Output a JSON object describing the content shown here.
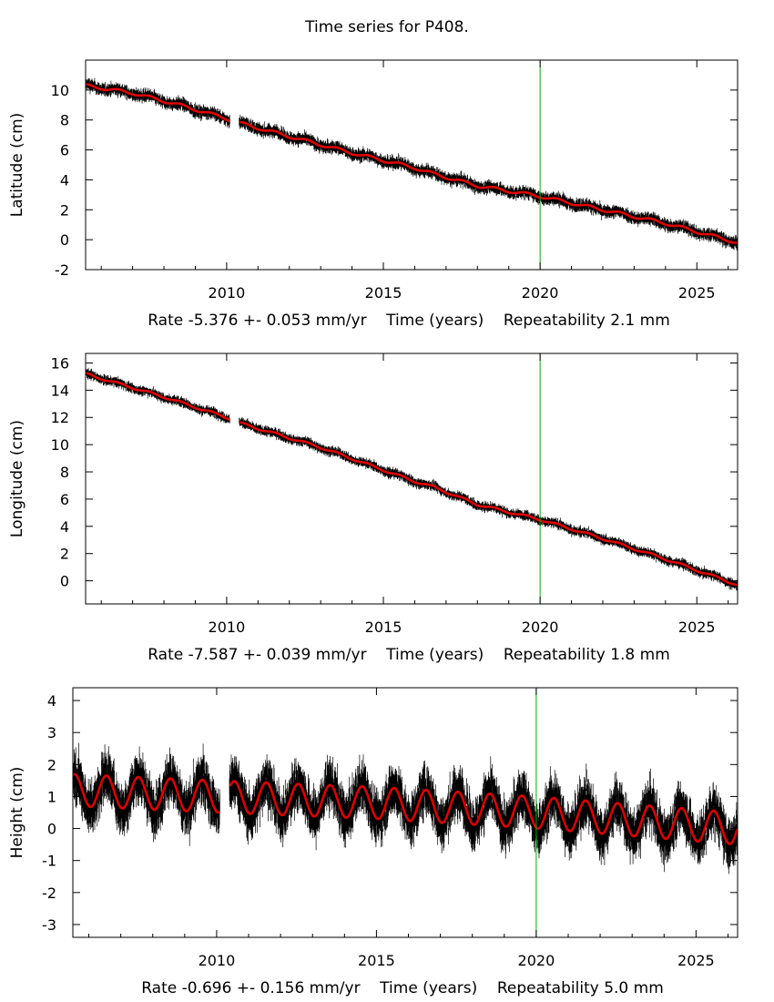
{
  "page": {
    "title": "Time series for P408."
  },
  "colors": {
    "data": "#000000",
    "model": "#e00000",
    "marker": "#00b000"
  },
  "chart_data": [
    {
      "type": "scatter",
      "ylabel": "Latitude (cm)",
      "xlabel": "Rate -5.376 +- 0.053 mm/yr    Time (years)    Repeatability 2.1 mm",
      "xlim": [
        2005.5,
        2026.3
      ],
      "ylim": [
        -2,
        12
      ],
      "xticks": [
        2010,
        2015,
        2020,
        2025
      ],
      "yticks": [
        -2,
        0,
        2,
        4,
        6,
        8,
        10
      ],
      "marker_line_x": 2020.0,
      "gaps": [
        [
          2010.1,
          2010.4
        ]
      ],
      "series": [
        {
          "x": [
            2005.5,
            2007,
            2008.5,
            2010,
            2010.4,
            2012,
            2014,
            2016,
            2016.6,
            2018,
            2020,
            2022,
            2024,
            2026.3
          ],
          "values": [
            10.3,
            9.8,
            9.0,
            8.1,
            7.8,
            6.9,
            5.8,
            4.8,
            4.4,
            3.6,
            2.9,
            2.0,
            1.1,
            -0.2
          ],
          "scatter": 0.3,
          "seasonal_amp": 0.1
        }
      ]
    },
    {
      "type": "scatter",
      "ylabel": "Longitude (cm)",
      "xlabel": "Rate -7.587 +- 0.039 mm/yr    Time (years)    Repeatability 1.8 mm",
      "xlim": [
        2005.5,
        2026.3
      ],
      "ylim": [
        -1.7,
        16.7
      ],
      "xticks": [
        2010,
        2015,
        2020,
        2025
      ],
      "yticks": [
        0,
        2,
        4,
        6,
        8,
        10,
        12,
        14,
        16
      ],
      "marker_line_x": 2020.0,
      "gaps": [
        [
          2010.1,
          2010.4
        ]
      ],
      "series": [
        {
          "x": [
            2005.5,
            2008,
            2010,
            2010.4,
            2013,
            2016,
            2016.6,
            2018,
            2020,
            2022,
            2024,
            2026.3
          ],
          "values": [
            15.2,
            13.5,
            12.0,
            11.6,
            9.8,
            7.3,
            6.9,
            5.6,
            4.5,
            3.1,
            1.6,
            -0.3
          ],
          "scatter": 0.25,
          "seasonal_amp": 0.08
        }
      ]
    },
    {
      "type": "scatter",
      "ylabel": "Height (cm)",
      "xlabel": "Rate -0.696 +- 0.156 mm/yr    Time (years)    Repeatability 5.0 mm",
      "xlim": [
        2005.5,
        2026.3
      ],
      "ylim": [
        -3.4,
        4.4
      ],
      "xticks": [
        2010,
        2015,
        2020,
        2025
      ],
      "yticks": [
        -3,
        -2,
        -1,
        0,
        1,
        2,
        3,
        4
      ],
      "marker_line_x": 2020.0,
      "gaps": [
        [
          2010.1,
          2010.4
        ]
      ],
      "series": [
        {
          "x": [
            2005.5,
            2010,
            2015,
            2020,
            2025,
            2026.3
          ],
          "values": [
            1.2,
            1.0,
            0.8,
            0.5,
            0.1,
            0.0
          ],
          "scatter": 0.55,
          "seasonal_amp": 0.5
        }
      ]
    }
  ]
}
